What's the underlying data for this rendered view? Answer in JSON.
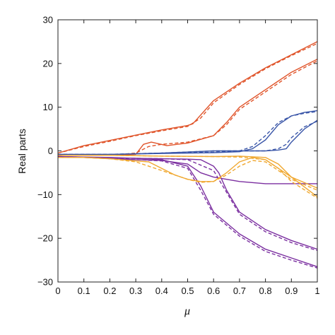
{
  "chart_data": {
    "type": "line",
    "xlabel": "μ",
    "ylabel": "Real parts",
    "xlim": [
      0,
      1
    ],
    "ylim": [
      -30,
      30
    ],
    "xticks": [
      "0",
      "0.1",
      "0.2",
      "0.3",
      "0.4",
      "0.5",
      "0.6",
      "0.7",
      "0.8",
      "0.9",
      "1"
    ],
    "yticks": [
      "30",
      "20",
      "10",
      "0",
      "−10",
      "−20",
      "−30"
    ],
    "ytick_values": [
      30,
      20,
      10,
      0,
      -10,
      -20,
      -30
    ],
    "grid": false,
    "legend": "none",
    "series": [
      {
        "color": "#e0542a",
        "style": "solid",
        "x": [
          0,
          0.1,
          0.2,
          0.3,
          0.4,
          0.5,
          0.52,
          0.6,
          0.7,
          0.8,
          0.9,
          1.0
        ],
        "y": [
          -0.5,
          1.2,
          2.4,
          3.6,
          4.8,
          5.8,
          6.2,
          11.5,
          15.5,
          19.0,
          22.0,
          25.0
        ]
      },
      {
        "color": "#e0542a",
        "style": "dashed",
        "x": [
          0,
          0.1,
          0.2,
          0.3,
          0.4,
          0.5,
          0.55,
          0.6,
          0.7,
          0.8,
          0.9,
          1.0
        ],
        "y": [
          -0.5,
          1.0,
          2.2,
          3.5,
          4.6,
          5.6,
          7.5,
          11.0,
          15.2,
          18.8,
          21.8,
          24.6
        ]
      },
      {
        "color": "#e0542a",
        "style": "solid",
        "x": [
          0,
          0.2,
          0.3,
          0.33,
          0.36,
          0.42,
          0.5,
          0.6,
          0.65,
          0.7,
          0.8,
          0.9,
          1.0
        ],
        "y": [
          -1.0,
          -1.0,
          -0.8,
          1.5,
          2.0,
          1.2,
          1.8,
          3.5,
          6.5,
          10.0,
          14.0,
          18.0,
          21.0
        ]
      },
      {
        "color": "#e0542a",
        "style": "dashed",
        "x": [
          0,
          0.2,
          0.3,
          0.35,
          0.4,
          0.5,
          0.6,
          0.65,
          0.7,
          0.8,
          0.9,
          1.0
        ],
        "y": [
          -1.0,
          -1.0,
          -0.5,
          1.0,
          1.5,
          2.0,
          3.5,
          6.0,
          9.5,
          13.5,
          17.5,
          20.6
        ]
      },
      {
        "color": "#3a56a8",
        "style": "solid",
        "x": [
          0,
          0.2,
          0.4,
          0.6,
          0.7,
          0.75,
          0.8,
          0.85,
          0.9,
          0.95,
          1.0
        ],
        "y": [
          -0.8,
          -0.8,
          -0.6,
          -0.4,
          -0.2,
          0.5,
          2.5,
          6.0,
          8.0,
          8.8,
          9.2
        ]
      },
      {
        "color": "#3a56a8",
        "style": "dashed",
        "x": [
          0,
          0.2,
          0.4,
          0.6,
          0.7,
          0.75,
          0.8,
          0.85,
          0.9,
          0.95,
          1.0
        ],
        "y": [
          -0.8,
          -0.8,
          -0.5,
          -0.3,
          0.0,
          1.0,
          3.5,
          6.5,
          8.0,
          8.6,
          9.0
        ]
      },
      {
        "color": "#3a56a8",
        "style": "solid",
        "x": [
          0,
          0.2,
          0.4,
          0.6,
          0.8,
          0.85,
          0.88,
          0.9,
          0.95,
          1.0
        ],
        "y": [
          -0.8,
          -0.8,
          -0.5,
          0.0,
          0.0,
          0.2,
          0.5,
          2.0,
          5.0,
          7.0
        ]
      },
      {
        "color": "#3a56a8",
        "style": "dashed",
        "x": [
          0,
          0.2,
          0.4,
          0.6,
          0.8,
          0.85,
          0.88,
          0.9,
          0.95,
          1.0
        ],
        "y": [
          -0.8,
          -0.8,
          -0.5,
          0.0,
          0.0,
          0.5,
          1.5,
          3.0,
          5.5,
          6.8
        ]
      },
      {
        "color": "#7b2fa0",
        "style": "solid",
        "x": [
          0,
          0.1,
          0.2,
          0.3,
          0.4,
          0.5,
          0.55,
          0.6,
          0.7,
          0.8,
          0.9,
          1.0
        ],
        "y": [
          -1.3,
          -1.5,
          -1.8,
          -2.0,
          -2.2,
          -3.0,
          -5.0,
          -6.0,
          -7.0,
          -7.5,
          -7.5,
          -7.5
        ]
      },
      {
        "color": "#7b2fa0",
        "style": "solid",
        "x": [
          0,
          0.1,
          0.2,
          0.3,
          0.4,
          0.5,
          0.55,
          0.6,
          0.7,
          0.8,
          0.9,
          1.0
        ],
        "y": [
          -1.3,
          -1.4,
          -1.5,
          -1.7,
          -2.0,
          -3.5,
          -8.0,
          -14.0,
          -19.0,
          -22.5,
          -24.5,
          -26.5
        ]
      },
      {
        "color": "#7b2fa0",
        "style": "dashed",
        "x": [
          0,
          0.2,
          0.4,
          0.5,
          0.55,
          0.6,
          0.7,
          0.8,
          0.9,
          1.0
        ],
        "y": [
          -1.3,
          -1.7,
          -2.3,
          -4.0,
          -9.0,
          -14.5,
          -19.5,
          -23.0,
          -25.0,
          -26.8
        ]
      },
      {
        "color": "#7b2fa0",
        "style": "solid",
        "x": [
          0,
          0.2,
          0.4,
          0.5,
          0.55,
          0.6,
          0.62,
          0.65,
          0.7,
          0.8,
          0.9,
          1.0
        ],
        "y": [
          -1.3,
          -1.6,
          -1.8,
          -1.9,
          -2.0,
          -3.5,
          -5.0,
          -9.0,
          -14.0,
          -18.0,
          -20.5,
          -22.5
        ]
      },
      {
        "color": "#7b2fa0",
        "style": "dashed",
        "x": [
          0,
          0.2,
          0.4,
          0.5,
          0.6,
          0.65,
          0.7,
          0.8,
          0.9,
          1.0
        ],
        "y": [
          -1.3,
          -1.6,
          -1.8,
          -2.0,
          -4.5,
          -9.5,
          -14.5,
          -18.5,
          -21.0,
          -22.8
        ]
      },
      {
        "color": "#f0a830",
        "style": "solid",
        "x": [
          0,
          0.1,
          0.2,
          0.3,
          0.35,
          0.4,
          0.45,
          0.5,
          0.55,
          0.6,
          0.65,
          0.7,
          0.75,
          0.8,
          0.9,
          1.0
        ],
        "y": [
          -1.5,
          -1.5,
          -1.8,
          -2.3,
          -2.5,
          -4.0,
          -5.5,
          -6.5,
          -7.0,
          -7.0,
          -5.0,
          -2.5,
          -1.5,
          -2.0,
          -6.0,
          -8.5
        ]
      },
      {
        "color": "#f0a830",
        "style": "dashed",
        "x": [
          0,
          0.1,
          0.2,
          0.3,
          0.4,
          0.5,
          0.55,
          0.6,
          0.65,
          0.7,
          0.75,
          0.8,
          0.9,
          1.0
        ],
        "y": [
          -1.5,
          -1.5,
          -1.8,
          -2.5,
          -4.5,
          -6.5,
          -7.2,
          -7.0,
          -5.5,
          -3.5,
          -2.2,
          -2.5,
          -6.5,
          -9.0
        ]
      },
      {
        "color": "#f0a830",
        "style": "solid",
        "x": [
          0,
          0.2,
          0.4,
          0.6,
          0.7,
          0.8,
          0.85,
          0.9,
          1.0
        ],
        "y": [
          -1.0,
          -1.0,
          -1.2,
          -1.3,
          -1.2,
          -1.5,
          -3.0,
          -6.0,
          -10.5
        ]
      },
      {
        "color": "#f0a830",
        "style": "dashed",
        "x": [
          0,
          0.2,
          0.4,
          0.6,
          0.7,
          0.8,
          0.85,
          0.9,
          1.0
        ],
        "y": [
          -1.0,
          -1.0,
          -1.2,
          -1.3,
          -1.4,
          -2.0,
          -4.0,
          -7.0,
          -10.8
        ]
      }
    ]
  }
}
